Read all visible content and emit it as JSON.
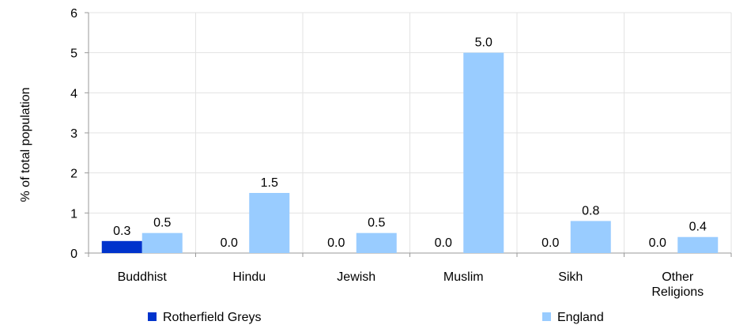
{
  "chart_data": {
    "type": "bar",
    "ylabel": "% of total population",
    "ylim": [
      0,
      6
    ],
    "yticks": [
      "0",
      "1",
      "2",
      "3",
      "4",
      "5",
      "6"
    ],
    "categories": [
      [
        "Buddhist"
      ],
      [
        "Hindu"
      ],
      [
        "Jewish"
      ],
      [
        "Muslim"
      ],
      [
        "Sikh"
      ],
      [
        "Other",
        "Religions"
      ]
    ],
    "series": [
      {
        "name": "Rotherfield Greys",
        "color": "#0033cc",
        "values": [
          0.3,
          0.0,
          0.0,
          0.0,
          0.0,
          0.0
        ],
        "labels": [
          "0.3",
          "0.0",
          "0.0",
          "0.0",
          "0.0",
          "0.0"
        ]
      },
      {
        "name": "England",
        "color": "#99ccff",
        "values": [
          0.5,
          1.5,
          0.5,
          5.0,
          0.8,
          0.4
        ],
        "labels": [
          "0.5",
          "1.5",
          "0.5",
          "5.0",
          "0.8",
          "0.4"
        ]
      }
    ],
    "grid": true,
    "legend_position": "bottom"
  }
}
